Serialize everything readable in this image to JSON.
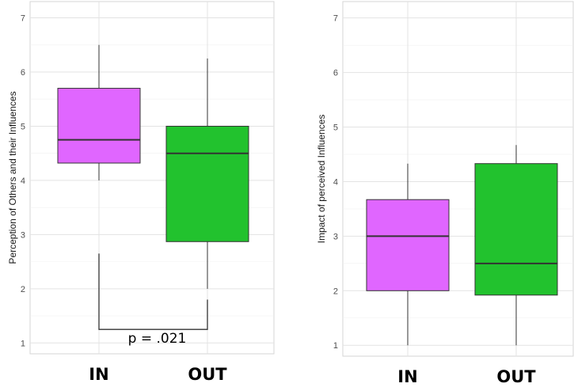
{
  "chart_data": [
    {
      "type": "box",
      "ylabel": "Perception of Others and their Influences",
      "ylim": [
        0.8,
        7.3
      ],
      "yticks": [
        1,
        2,
        3,
        4,
        5,
        6,
        7
      ],
      "grid": true,
      "categories": [
        "IN",
        "OUT"
      ],
      "series": [
        {
          "category": "IN",
          "color": "#e066ff",
          "whisker_low": 4.0,
          "q1": 4.32,
          "median": 4.75,
          "q3": 5.7,
          "whisker_high": 6.5
        },
        {
          "category": "OUT",
          "color": "#22c22e",
          "whisker_low": 2.0,
          "q1": 2.87,
          "median": 4.5,
          "q3": 5.0,
          "whisker_high": 6.25
        }
      ],
      "annotation": {
        "text": "p = .021",
        "bracket_top_left": 2.65,
        "bracket_top_right": 1.8,
        "bracket_bottom": 1.25
      }
    },
    {
      "type": "box",
      "ylabel": "Impact of perceived Influences",
      "ylim": [
        0.8,
        7.3
      ],
      "yticks": [
        1,
        2,
        3,
        4,
        5,
        6,
        7
      ],
      "grid": true,
      "categories": [
        "IN",
        "OUT"
      ],
      "series": [
        {
          "category": "IN",
          "color": "#e066ff",
          "whisker_low": 1.0,
          "q1": 2.0,
          "median": 3.0,
          "q3": 3.67,
          "whisker_high": 4.33
        },
        {
          "category": "OUT",
          "color": "#22c22e",
          "whisker_low": 1.0,
          "q1": 1.92,
          "median": 2.5,
          "q3": 4.33,
          "whisker_high": 4.67
        }
      ]
    }
  ]
}
